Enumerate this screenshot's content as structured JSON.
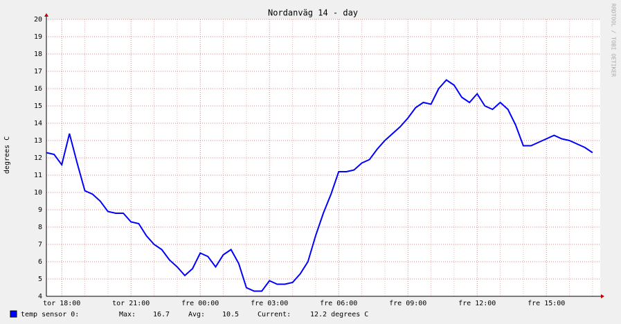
{
  "chart_data": {
    "type": "line",
    "title": "Nordanväg 14 - day",
    "ylabel": "degrees C",
    "watermark": "RRDTOOL / TOBI OETIKER",
    "categories": [
      null,
      null,
      "tor 18:00",
      null,
      null,
      null,
      null,
      null,
      null,
      null,
      null,
      "tor 21:00",
      null,
      null,
      null,
      null,
      null,
      null,
      null,
      null,
      "fre 00:00",
      null,
      null,
      null,
      null,
      null,
      null,
      null,
      null,
      "fre 03:00",
      null,
      null,
      null,
      null,
      null,
      null,
      null,
      null,
      "fre 06:00",
      null,
      null,
      null,
      null,
      null,
      null,
      null,
      null,
      "fre 09:00",
      null,
      null,
      null,
      null,
      null,
      null,
      null,
      null,
      "fre 12:00",
      null,
      null,
      null,
      null,
      null,
      null,
      null,
      null,
      "fre 15:00",
      null,
      null,
      null,
      null,
      null,
      null
    ],
    "series": [
      {
        "name": "temp sensor 0:",
        "color": "#0000ff",
        "values": [
          12.3,
          12.2,
          11.6,
          13.4,
          11.7,
          10.1,
          9.9,
          9.5,
          8.9,
          8.8,
          8.8,
          8.3,
          8.2,
          7.5,
          7.0,
          6.7,
          6.1,
          5.7,
          5.2,
          5.6,
          6.5,
          6.3,
          5.7,
          6.4,
          6.7,
          5.9,
          4.5,
          4.3,
          4.3,
          4.9,
          4.7,
          4.7,
          4.8,
          5.3,
          6.0,
          7.5,
          8.8,
          9.9,
          11.2,
          11.2,
          11.3,
          11.7,
          11.9,
          12.5,
          13.0,
          13.4,
          13.8,
          14.3,
          14.9,
          15.2,
          15.1,
          16.0,
          16.5,
          16.2,
          15.5,
          15.2,
          15.7,
          15.0,
          14.8,
          15.2,
          14.8,
          13.9,
          12.7,
          12.7,
          12.9,
          13.1,
          13.3,
          13.1,
          13.0,
          12.8,
          12.6,
          12.3
        ]
      }
    ],
    "stats": [
      {
        "label": "Max:",
        "value": 16.7
      },
      {
        "label": "Avg:",
        "value": 10.5
      },
      {
        "label": "Current:",
        "value": 12.2,
        "unit": "degrees C"
      }
    ],
    "ylim": [
      4,
      20
    ],
    "yticks": [
      4,
      5,
      6,
      7,
      8,
      9,
      10,
      11,
      12,
      13,
      14,
      15,
      16,
      17,
      18,
      19,
      20
    ],
    "grid": true
  }
}
